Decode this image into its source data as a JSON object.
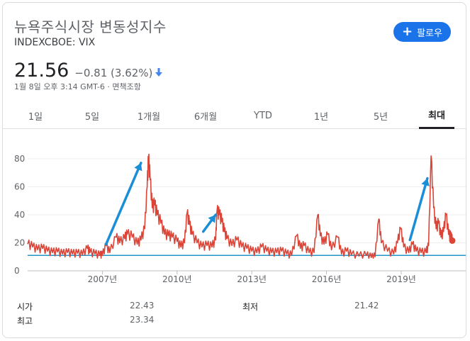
{
  "header": {
    "title": "뉴욕주식시장 변동성지수",
    "ticker": "INDEXCBOE: VIX",
    "follow_label": "팔로우",
    "follow_color": "#1a73e8"
  },
  "quote": {
    "price": "21.56",
    "change": "−0.81 (3.62%)",
    "timestamp": "1월 8일 오후 3:14 GMT-6 · 면책조항",
    "change_color": "#5f6368",
    "arrow_color": "#4285f4"
  },
  "tabs": [
    {
      "label": "1일",
      "active": false
    },
    {
      "label": "5일",
      "active": false
    },
    {
      "label": "1개월",
      "active": false
    },
    {
      "label": "6개월",
      "active": false
    },
    {
      "label": "YTD",
      "active": false
    },
    {
      "label": "1년",
      "active": false
    },
    {
      "label": "5년",
      "active": false
    },
    {
      "label": "최대",
      "active": true
    }
  ],
  "stats": {
    "open_label": "시가",
    "open_value": "22.43",
    "low_label": "최저",
    "low_value": "21.42",
    "high_label": "최고",
    "high_value": "23.34"
  },
  "chart_data": {
    "type": "line",
    "x_ticks": [
      "2007년",
      "2010년",
      "2013년",
      "2016년",
      "2019년"
    ],
    "y_ticks": [
      "0",
      "20",
      "40",
      "60",
      "80"
    ],
    "ylim": [
      0,
      85
    ],
    "xlim": [
      2004.0,
      2021.05
    ],
    "line_color": "#db4437",
    "baseline_color": "#2196c8",
    "arrow_color": "#1a8fd8",
    "baseline_value": 11,
    "series": [
      {
        "points": [
          [
            2004.0,
            19
          ],
          [
            2004.2,
            17
          ],
          [
            2004.4,
            15
          ],
          [
            2004.6,
            16
          ],
          [
            2004.8,
            14
          ],
          [
            2005.0,
            13
          ],
          [
            2005.2,
            13.5
          ],
          [
            2005.4,
            12
          ],
          [
            2005.6,
            13
          ],
          [
            2005.8,
            12
          ],
          [
            2006.0,
            12.5
          ],
          [
            2006.2,
            11.5
          ],
          [
            2006.4,
            16
          ],
          [
            2006.5,
            13
          ],
          [
            2006.7,
            12
          ],
          [
            2006.9,
            11
          ],
          [
            2007.0,
            11
          ],
          [
            2007.15,
            18
          ],
          [
            2007.3,
            13
          ],
          [
            2007.55,
            24
          ],
          [
            2007.7,
            20
          ],
          [
            2007.9,
            23
          ],
          [
            2008.0,
            26
          ],
          [
            2008.2,
            24
          ],
          [
            2008.4,
            19
          ],
          [
            2008.55,
            22
          ],
          [
            2008.7,
            30
          ],
          [
            2008.8,
            60
          ],
          [
            2008.85,
            80
          ],
          [
            2008.92,
            65
          ],
          [
            2009.0,
            45
          ],
          [
            2009.1,
            47
          ],
          [
            2009.2,
            40
          ],
          [
            2009.35,
            34
          ],
          [
            2009.5,
            26
          ],
          [
            2009.65,
            25
          ],
          [
            2009.8,
            24
          ],
          [
            2010.0,
            21
          ],
          [
            2010.15,
            17
          ],
          [
            2010.3,
            20
          ],
          [
            2010.4,
            41
          ],
          [
            2010.5,
            33
          ],
          [
            2010.6,
            26
          ],
          [
            2010.8,
            20
          ],
          [
            2011.0,
            17
          ],
          [
            2011.2,
            18
          ],
          [
            2011.4,
            17
          ],
          [
            2011.55,
            22
          ],
          [
            2011.6,
            42
          ],
          [
            2011.7,
            40
          ],
          [
            2011.8,
            35
          ],
          [
            2011.9,
            28
          ],
          [
            2012.0,
            23
          ],
          [
            2012.2,
            18
          ],
          [
            2012.4,
            22
          ],
          [
            2012.6,
            17
          ],
          [
            2012.8,
            16
          ],
          [
            2013.0,
            14
          ],
          [
            2013.2,
            13
          ],
          [
            2013.4,
            17
          ],
          [
            2013.6,
            14
          ],
          [
            2013.8,
            13
          ],
          [
            2014.0,
            13
          ],
          [
            2014.2,
            14
          ],
          [
            2014.4,
            12
          ],
          [
            2014.6,
            11
          ],
          [
            2014.8,
            25
          ],
          [
            2014.95,
            16
          ],
          [
            2015.1,
            18
          ],
          [
            2015.3,
            13
          ],
          [
            2015.5,
            13
          ],
          [
            2015.65,
            40
          ],
          [
            2015.75,
            25
          ],
          [
            2015.9,
            19
          ],
          [
            2016.05,
            26
          ],
          [
            2016.2,
            15
          ],
          [
            2016.45,
            24
          ],
          [
            2016.6,
            12
          ],
          [
            2016.8,
            14
          ],
          [
            2017.0,
            11.5
          ],
          [
            2017.3,
            10.5
          ],
          [
            2017.6,
            11
          ],
          [
            2017.8,
            9.5
          ],
          [
            2017.95,
            10
          ],
          [
            2018.1,
            37
          ],
          [
            2018.2,
            20
          ],
          [
            2018.45,
            14
          ],
          [
            2018.7,
            12
          ],
          [
            2018.85,
            20
          ],
          [
            2018.98,
            30
          ],
          [
            2019.1,
            17
          ],
          [
            2019.3,
            13
          ],
          [
            2019.45,
            19
          ],
          [
            2019.6,
            14
          ],
          [
            2019.8,
            13
          ],
          [
            2020.0,
            13
          ],
          [
            2020.1,
            18
          ],
          [
            2020.2,
            82
          ],
          [
            2020.3,
            45
          ],
          [
            2020.4,
            30
          ],
          [
            2020.5,
            34
          ],
          [
            2020.6,
            24
          ],
          [
            2020.7,
            28
          ],
          [
            2020.8,
            40
          ],
          [
            2020.9,
            26
          ],
          [
            2021.0,
            24
          ],
          [
            2021.05,
            21.56
          ]
        ]
      }
    ]
  }
}
